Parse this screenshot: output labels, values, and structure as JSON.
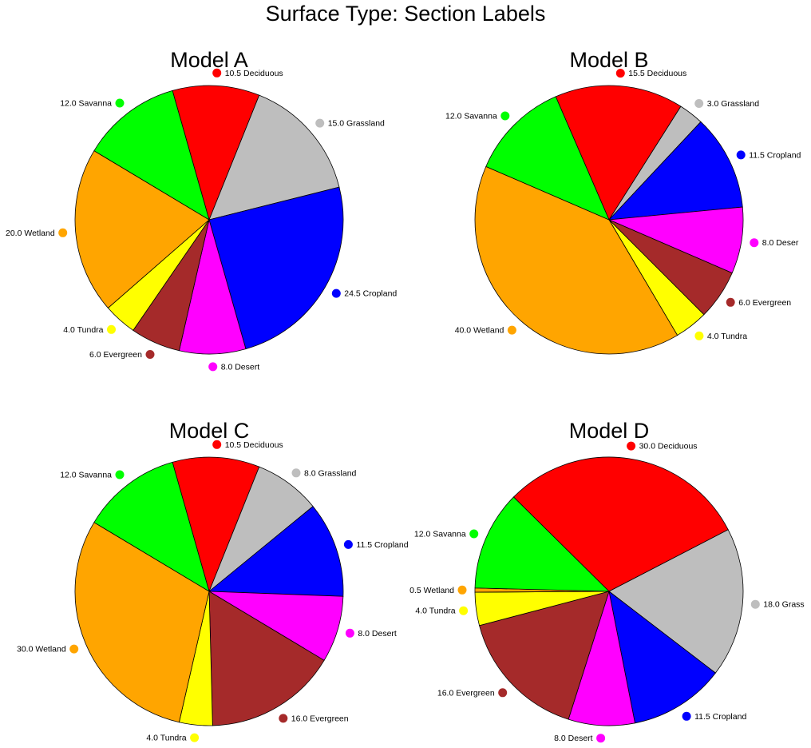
{
  "page_title": "Surface Type: Section Labels",
  "chart_data": [
    {
      "type": "pie",
      "title": "Model A",
      "slices": [
        {
          "label": "Deciduous",
          "value": 10.5,
          "color": "#ff0000"
        },
        {
          "label": "Grassland",
          "value": 15.0,
          "color": "#bebebe"
        },
        {
          "label": "Cropland",
          "value": 24.5,
          "color": "#0000ff"
        },
        {
          "label": "Desert",
          "value": 8.0,
          "color": "#ff00ff"
        },
        {
          "label": "Evergreen",
          "value": 6.0,
          "color": "#a52a2a"
        },
        {
          "label": "Tundra",
          "value": 4.0,
          "color": "#ffff00"
        },
        {
          "label": "Wetland",
          "value": 20.0,
          "color": "#ffa500"
        },
        {
          "label": "Savanna",
          "value": 12.0,
          "color": "#00ff00"
        }
      ]
    },
    {
      "type": "pie",
      "title": "Model B",
      "slices": [
        {
          "label": "Deciduous",
          "value": 15.5,
          "color": "#ff0000"
        },
        {
          "label": "Grassland",
          "value": 3.0,
          "color": "#bebebe"
        },
        {
          "label": "Cropland",
          "value": 11.5,
          "color": "#0000ff"
        },
        {
          "label": "Deser",
          "value": 8.0,
          "color": "#ff00ff"
        },
        {
          "label": "Evergreen",
          "value": 6.0,
          "color": "#a52a2a"
        },
        {
          "label": "Tundra",
          "value": 4.0,
          "color": "#ffff00"
        },
        {
          "label": "Wetland",
          "value": 40.0,
          "color": "#ffa500"
        },
        {
          "label": "Savanna",
          "value": 12.0,
          "color": "#00ff00"
        }
      ]
    },
    {
      "type": "pie",
      "title": "Model C",
      "slices": [
        {
          "label": "Deciduous",
          "value": 10.5,
          "color": "#ff0000"
        },
        {
          "label": "Grassland",
          "value": 8.0,
          "color": "#bebebe"
        },
        {
          "label": "Cropland",
          "value": 11.5,
          "color": "#0000ff"
        },
        {
          "label": "Desert",
          "value": 8.0,
          "color": "#ff00ff"
        },
        {
          "label": "Evergreen",
          "value": 16.0,
          "color": "#a52a2a"
        },
        {
          "label": "Tundra",
          "value": 4.0,
          "color": "#ffff00"
        },
        {
          "label": "Wetland",
          "value": 30.0,
          "color": "#ffa500"
        },
        {
          "label": "Savanna",
          "value": 12.0,
          "color": "#00ff00"
        }
      ]
    },
    {
      "type": "pie",
      "title": "Model D",
      "slices": [
        {
          "label": "Deciduous",
          "value": 30.0,
          "color": "#ff0000"
        },
        {
          "label": "Grass",
          "value": 18.0,
          "color": "#bebebe"
        },
        {
          "label": "Cropland",
          "value": 11.5,
          "color": "#0000ff"
        },
        {
          "label": "Desert",
          "value": 8.0,
          "color": "#ff00ff"
        },
        {
          "label": "Evergreen",
          "value": 16.0,
          "color": "#a52a2a"
        },
        {
          "label": "Tundra",
          "value": 4.0,
          "color": "#ffff00"
        },
        {
          "label": "Wetland",
          "value": 0.5,
          "color": "#ffa500"
        },
        {
          "label": "Savanna",
          "value": 12.0,
          "color": "#00ff00"
        }
      ]
    }
  ]
}
